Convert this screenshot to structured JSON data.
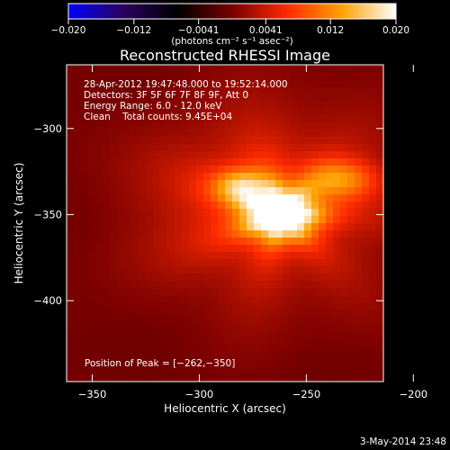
{
  "chart_data": {
    "type": "heatmap",
    "title": "Reconstructed RHESSI Image",
    "xlabel": "Heliocentric X (arcsec)",
    "ylabel": "Heliocentric Y (arcsec)",
    "xlim": [
      -362,
      -214
    ],
    "ylim": [
      -447,
      -263
    ],
    "x_ticks": [
      -350,
      -300,
      -250,
      -200
    ],
    "y_ticks": [
      -400,
      -350,
      -300
    ],
    "x_tick_labels": [
      "−350",
      "−300",
      "−250",
      "−200"
    ],
    "y_tick_labels": [
      "−400",
      "−350",
      "−300"
    ],
    "colorbar": {
      "min": -0.02,
      "max": 0.02,
      "ticks": [
        -0.02,
        -0.012,
        -0.0041,
        0.0041,
        0.012,
        0.02
      ],
      "tick_labels": [
        "−0.020",
        "−0.012",
        "−0.0041",
        "0.0041",
        "0.012",
        "0.020"
      ],
      "unit": "(photons cm⁻² s⁻¹ asec⁻²)",
      "colors": [
        "#0000ff",
        "#2b0060",
        "#000000",
        "#7a0000",
        "#ff2a00",
        "#ffa000",
        "#ffffff"
      ]
    },
    "sources": [
      {
        "x": -262,
        "y": -350,
        "sx": 12,
        "sy": 10,
        "amp": 0.02
      },
      {
        "x": -280,
        "y": -333,
        "sx": 9,
        "sy": 7,
        "amp": 0.01
      },
      {
        "x": -233,
        "y": -330,
        "sx": 12,
        "sy": 8,
        "amp": 0.0092
      },
      {
        "x": -270,
        "y": -345,
        "sx": 30,
        "sy": 26,
        "amp": 0.0058
      },
      {
        "x": -265,
        "y": -340,
        "sx": 55,
        "sy": 55,
        "amp": 0.0026
      }
    ],
    "peak": [
      -262,
      -350
    ],
    "annotations": [
      "28-Apr-2012 19:47:48.000 to 19:52:14.000",
      "Detectors: 3F 5F 6F 7F 8F 9F, Att 0",
      "Energy Range: 6.0 - 12.0 keV",
      "Clean    Total counts: 9.45E+04"
    ],
    "peak_label": "Position of Peak = [−262,−350]",
    "footer_date": "3-May-2014 23:48"
  }
}
